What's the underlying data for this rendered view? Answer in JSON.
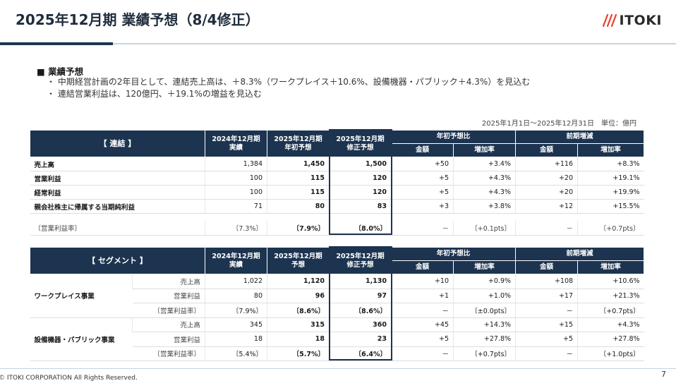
{
  "title": "2025年12月期 業績予想（8/4修正）",
  "logo_text": "ITOKI",
  "section": {
    "heading": "■ 業績予想",
    "bullets": [
      "・ 中期経営計画の2年目として、連結売上高は、＋8.3%（ワークプレイス＋10.6%、設備機器・パブリック＋4.3%）を見込む",
      "・ 連結営業利益は、120億円、＋19.1%の増益を見込む"
    ]
  },
  "period_unit": "2025年1月1日～2025年12月31日　単位：億円",
  "table1": {
    "corner": "【 連結 】",
    "col_2024": "2024年12月期\n実績",
    "col_2025_initial": "2025年12月期\n年初予想",
    "col_2025_revised": "2025年12月期\n修正予想",
    "group_vs_initial": "年初予想比",
    "group_vs_prev": "前期増減",
    "sub_amount": "金額",
    "sub_rate": "増加率",
    "rows": [
      {
        "label": "売上高",
        "v2024": "1,384",
        "initial": "1,450",
        "revised": "1,500",
        "d_amt": "+50",
        "d_rate": "+3.4%",
        "p_amt": "+116",
        "p_rate": "+8.3%"
      },
      {
        "label": "営業利益",
        "v2024": "100",
        "initial": "115",
        "revised": "120",
        "d_amt": "+5",
        "d_rate": "+4.3%",
        "p_amt": "+20",
        "p_rate": "+19.1%"
      },
      {
        "label": "経常利益",
        "v2024": "100",
        "initial": "115",
        "revised": "120",
        "d_amt": "+5",
        "d_rate": "+4.3%",
        "p_amt": "+20",
        "p_rate": "+19.9%"
      },
      {
        "label": "親会社株主に帰属する当期純利益",
        "v2024": "71",
        "initial": "80",
        "revised": "83",
        "d_amt": "+3",
        "d_rate": "+3.8%",
        "p_amt": "+12",
        "p_rate": "+15.5%"
      }
    ],
    "margin_row": {
      "label": "〔営業利益率〕",
      "v2024": "〔7.3%〕",
      "initial": "〔7.9%〕",
      "revised": "〔8.0%〕",
      "d_amt": "－",
      "d_rate": "〔+0.1pts〕",
      "p_amt": "－",
      "p_rate": "〔+0.7pts〕"
    }
  },
  "table2": {
    "corner": "【 セグメント 】",
    "col_2024": "2024年12月期\n実績",
    "col_2025_initial": "2025年12月期\n予想",
    "col_2025_revised": "2025年12月期\n修正予想",
    "group_vs_initial": "年初予想比",
    "group_vs_prev": "前期増減",
    "sub_amount": "金額",
    "sub_rate": "増加率",
    "segments": [
      {
        "name": "ワークプレイス事業",
        "rows": [
          {
            "item": "売上高",
            "v2024": "1,022",
            "initial": "1,120",
            "revised": "1,130",
            "d_amt": "+10",
            "d_rate": "+0.9%",
            "p_amt": "+108",
            "p_rate": "+10.6%"
          },
          {
            "item": "営業利益",
            "v2024": "80",
            "initial": "96",
            "revised": "97",
            "d_amt": "+1",
            "d_rate": "+1.0%",
            "p_amt": "+17",
            "p_rate": "+21.3%"
          },
          {
            "item": "〔営業利益率〕",
            "v2024": "〔7.9%〕",
            "initial": "〔8.6%〕",
            "revised": "〔8.6%〕",
            "d_amt": "－",
            "d_rate": "〔±0.0pts〕",
            "p_amt": "－",
            "p_rate": "〔+0.7pts〕"
          }
        ]
      },
      {
        "name": "設備機器・パブリック事業",
        "rows": [
          {
            "item": "売上高",
            "v2024": "345",
            "initial": "315",
            "revised": "360",
            "d_amt": "+45",
            "d_rate": "+14.3%",
            "p_amt": "+15",
            "p_rate": "+4.3%"
          },
          {
            "item": "営業利益",
            "v2024": "18",
            "initial": "18",
            "revised": "23",
            "d_amt": "+5",
            "d_rate": "+27.8%",
            "p_amt": "+5",
            "p_rate": "+27.8%"
          },
          {
            "item": "〔営業利益率〕",
            "v2024": "〔5.4%〕",
            "initial": "〔5.7%〕",
            "revised": "〔6.4%〕",
            "d_amt": "－",
            "d_rate": "〔+0.7pts〕",
            "p_amt": "－",
            "p_rate": "〔+1.0pts〕"
          }
        ]
      }
    ]
  },
  "footer": {
    "copyright": "© ITOKI CORPORATION All Rights Reserved.",
    "page_number": "7"
  }
}
